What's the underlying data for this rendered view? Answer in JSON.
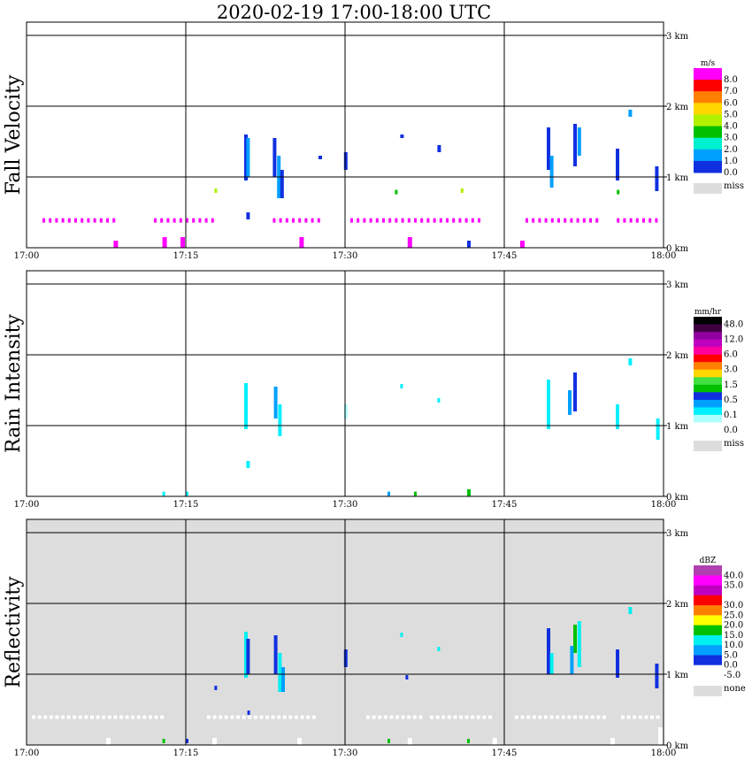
{
  "title": "2020-02-19   17:00-18:00 UTC",
  "chart_data": [
    {
      "type": "heatmap",
      "name": "Fall Velocity",
      "ylabel": "Fall Velocity",
      "units": "m/s",
      "background": "#ffffff",
      "x_ticks": [
        "17:00",
        "17:15",
        "17:30",
        "17:45",
        "18:00"
      ],
      "y_ticks": [
        "0 km",
        "1 km",
        "2 km",
        "3 km"
      ],
      "xlim_min": [
        0,
        60
      ],
      "ylim_km": [
        0,
        3
      ],
      "colorbar": [
        {
          "label": "8.0",
          "color": "#ff00ff"
        },
        {
          "label": "7.0",
          "color": "#ff0000"
        },
        {
          "label": "6.0",
          "color": "#ff7f00"
        },
        {
          "label": "5.0",
          "color": "#ffd700"
        },
        {
          "label": "4.0",
          "color": "#b0f000"
        },
        {
          "label": "3.0",
          "color": "#00c000"
        },
        {
          "label": "2.0",
          "color": "#00f0d0"
        },
        {
          "label": "1.0",
          "color": "#00a0ff"
        },
        {
          "label": "0.0",
          "color": "#1030e0"
        }
      ],
      "miss_label": "miss",
      "miss_color": "#dddddd",
      "echoes": [
        {
          "t": 20.5,
          "z0": 0.95,
          "z1": 1.6,
          "color": "#1030e0"
        },
        {
          "t": 20.7,
          "z0": 1.0,
          "z1": 1.55,
          "color": "#00a0ff"
        },
        {
          "t": 23.2,
          "z0": 1.0,
          "z1": 1.55,
          "color": "#1030e0"
        },
        {
          "t": 23.6,
          "z0": 0.7,
          "z1": 1.3,
          "color": "#00a0ff"
        },
        {
          "t": 23.9,
          "z0": 0.7,
          "z1": 1.1,
          "color": "#1030e0"
        },
        {
          "t": 27.5,
          "z0": 1.25,
          "z1": 1.3,
          "color": "#1030e0"
        },
        {
          "t": 29.9,
          "z0": 1.1,
          "z1": 1.35,
          "color": "#1030e0"
        },
        {
          "t": 35.2,
          "z0": 1.55,
          "z1": 1.6,
          "color": "#1030e0"
        },
        {
          "t": 38.7,
          "z0": 1.35,
          "z1": 1.45,
          "color": "#1030e0"
        },
        {
          "t": 49.0,
          "z0": 1.1,
          "z1": 1.7,
          "color": "#1030e0"
        },
        {
          "t": 49.3,
          "z0": 0.85,
          "z1": 1.3,
          "color": "#00a0ff"
        },
        {
          "t": 51.5,
          "z0": 1.15,
          "z1": 1.75,
          "color": "#1030e0"
        },
        {
          "t": 51.9,
          "z0": 1.3,
          "z1": 1.7,
          "color": "#00a0ff"
        },
        {
          "t": 55.5,
          "z0": 0.95,
          "z1": 1.4,
          "color": "#1030e0"
        },
        {
          "t": 56.7,
          "z0": 1.85,
          "z1": 1.95,
          "color": "#00a0ff"
        },
        {
          "t": 59.2,
          "z0": 0.8,
          "z1": 1.15,
          "color": "#1030e0"
        },
        {
          "t": 41.5,
          "z0": 0.0,
          "z1": 0.1,
          "color": "#1030e0"
        },
        {
          "t": 20.7,
          "z0": 0.4,
          "z1": 0.5,
          "color": "#1030e0"
        }
      ],
      "speckles": [
        {
          "t": 17.7,
          "z": 0.8,
          "color": "#b0f000"
        },
        {
          "t": 34.7,
          "z": 0.78,
          "color": "#00c000"
        },
        {
          "t": 40.9,
          "z": 0.8,
          "color": "#b0f000"
        },
        {
          "t": 55.6,
          "z": 0.78,
          "color": "#00c000"
        }
      ],
      "magenta_band_z": 0.38,
      "magenta_band_segments": [
        [
          1.5,
          8.5
        ],
        [
          12,
          17.5
        ],
        [
          23.2,
          27.6
        ],
        [
          30.5,
          43
        ],
        [
          47,
          54
        ],
        [
          55.6,
          59.6
        ]
      ],
      "surface_marks": [
        [
          8.2,
          0.05
        ],
        [
          12.8,
          0.1
        ],
        [
          14.5,
          0.1
        ],
        [
          25.7,
          0.1
        ],
        [
          35.9,
          0.1
        ],
        [
          46.5,
          0.05
        ]
      ]
    },
    {
      "type": "heatmap",
      "name": "Rain Intensity",
      "ylabel": "Rain Intensity",
      "units": "mm/hr",
      "background": "#ffffff",
      "x_ticks": [
        "17:00",
        "17:15",
        "17:30",
        "17:45",
        "18:00"
      ],
      "y_ticks": [
        "0 km",
        "1 km",
        "2 km",
        "3 km"
      ],
      "xlim_min": [
        0,
        60
      ],
      "ylim_km": [
        0,
        3
      ],
      "colorbar": [
        {
          "label": "48.0",
          "color": "#000000"
        },
        {
          "label": "",
          "color": "#400040"
        },
        {
          "label": "12.0",
          "color": "#9000a0"
        },
        {
          "label": "",
          "color": "#c000c0"
        },
        {
          "label": "6.0",
          "color": "#ff00a0"
        },
        {
          "label": "",
          "color": "#ff0000"
        },
        {
          "label": "3.0",
          "color": "#ff7f00"
        },
        {
          "label": "",
          "color": "#ffd700"
        },
        {
          "label": "1.5",
          "color": "#40e040"
        },
        {
          "label": "",
          "color": "#00c000"
        },
        {
          "label": "0.5",
          "color": "#1030e0"
        },
        {
          "label": "",
          "color": "#00a0ff"
        },
        {
          "label": "0.1",
          "color": "#00f0ff"
        },
        {
          "label": "",
          "color": "#b0ffff"
        },
        {
          "label": "0.0",
          "color": "#ffffff"
        }
      ],
      "miss_label": "miss",
      "miss_color": "#dddddd",
      "echoes": [
        {
          "t": 20.5,
          "z0": 0.95,
          "z1": 1.6,
          "color": "#00f0ff"
        },
        {
          "t": 20.7,
          "z0": 0.4,
          "z1": 0.5,
          "color": "#00f0ff"
        },
        {
          "t": 23.3,
          "z0": 1.1,
          "z1": 1.55,
          "color": "#00a0ff"
        },
        {
          "t": 23.7,
          "z0": 0.85,
          "z1": 1.3,
          "color": "#00f0ff"
        },
        {
          "t": 29.9,
          "z0": 1.1,
          "z1": 1.3,
          "color": "#b0ffff"
        },
        {
          "t": 49.0,
          "z0": 0.95,
          "z1": 1.65,
          "color": "#00f0ff"
        },
        {
          "t": 51.5,
          "z0": 1.2,
          "z1": 1.75,
          "color": "#1030e0"
        },
        {
          "t": 51.0,
          "z0": 1.15,
          "z1": 1.5,
          "color": "#00a0ff"
        },
        {
          "t": 55.5,
          "z0": 0.95,
          "z1": 1.3,
          "color": "#00f0ff"
        },
        {
          "t": 56.7,
          "z0": 1.85,
          "z1": 1.95,
          "color": "#00f0ff"
        },
        {
          "t": 59.3,
          "z0": 0.8,
          "z1": 1.1,
          "color": "#00f0ff"
        },
        {
          "t": 41.5,
          "z0": 0.0,
          "z1": 0.1,
          "color": "#00c000"
        }
      ],
      "speckles": [
        {
          "t": 35.2,
          "z": 1.55,
          "color": "#00f0ff"
        },
        {
          "t": 38.7,
          "z": 1.35,
          "color": "#00f0ff"
        },
        {
          "t": 34.0,
          "z": 0.03,
          "color": "#00a0ff"
        },
        {
          "t": 36.5,
          "z": 0.03,
          "color": "#00c000"
        },
        {
          "t": 15.0,
          "z": 0.03,
          "color": "#00f0ff"
        },
        {
          "t": 12.8,
          "z": 0.03,
          "color": "#00f0ff"
        }
      ]
    },
    {
      "type": "heatmap",
      "name": "Reflectivity",
      "ylabel": "Reflectivity",
      "units": "dBZ",
      "background": "#dddddd",
      "x_ticks": [
        "17:00",
        "17:15",
        "17:30",
        "17:45",
        "18:00"
      ],
      "y_ticks": [
        "0 km",
        "1 km",
        "2 km",
        "3 km"
      ],
      "xlim_min": [
        0,
        60
      ],
      "ylim_km": [
        0,
        3
      ],
      "colorbar": [
        {
          "label": "40.0",
          "color": "#b040b0"
        },
        {
          "label": "35.0",
          "color": "#ff00ff"
        },
        {
          "label": "",
          "color": "#c000c0"
        },
        {
          "label": "30.0",
          "color": "#ff0000"
        },
        {
          "label": "25.0",
          "color": "#ff7f00"
        },
        {
          "label": "20.0",
          "color": "#ffff00"
        },
        {
          "label": "15.0",
          "color": "#00c000"
        },
        {
          "label": "10.0",
          "color": "#00f0f0"
        },
        {
          "label": "5.0",
          "color": "#00a0ff"
        },
        {
          "label": "0.0",
          "color": "#1030e0"
        },
        {
          "label": "-5.0",
          "color": "#ffffff"
        }
      ],
      "miss_label": "none",
      "miss_color": "#dddddd",
      "echoes": [
        {
          "t": 20.5,
          "z0": 0.95,
          "z1": 1.6,
          "color": "#00f0f0"
        },
        {
          "t": 20.7,
          "z0": 1.0,
          "z1": 1.5,
          "color": "#1030e0"
        },
        {
          "t": 23.3,
          "z0": 1.0,
          "z1": 1.55,
          "color": "#1030e0"
        },
        {
          "t": 23.7,
          "z0": 0.75,
          "z1": 1.3,
          "color": "#00f0f0"
        },
        {
          "t": 24.0,
          "z0": 0.75,
          "z1": 1.1,
          "color": "#00a0ff"
        },
        {
          "t": 29.9,
          "z0": 1.1,
          "z1": 1.35,
          "color": "#1030e0"
        },
        {
          "t": 49.0,
          "z0": 1.0,
          "z1": 1.65,
          "color": "#1030e0"
        },
        {
          "t": 49.3,
          "z0": 1.0,
          "z1": 1.3,
          "color": "#00f0f0"
        },
        {
          "t": 51.5,
          "z0": 1.3,
          "z1": 1.7,
          "color": "#00c000"
        },
        {
          "t": 51.9,
          "z0": 1.1,
          "z1": 1.75,
          "color": "#00f0f0"
        },
        {
          "t": 51.2,
          "z0": 1.0,
          "z1": 1.4,
          "color": "#00a0ff"
        },
        {
          "t": 55.5,
          "z0": 0.95,
          "z1": 1.35,
          "color": "#1030e0"
        },
        {
          "t": 59.2,
          "z0": 0.8,
          "z1": 1.15,
          "color": "#1030e0"
        },
        {
          "t": 56.7,
          "z0": 1.85,
          "z1": 1.95,
          "color": "#00f0f0"
        }
      ],
      "speckles": [
        {
          "t": 35.2,
          "z": 1.55,
          "color": "#00f0f0"
        },
        {
          "t": 38.7,
          "z": 1.35,
          "color": "#00f0f0"
        },
        {
          "t": 17.7,
          "z": 0.8,
          "color": "#1030e0"
        },
        {
          "t": 35.7,
          "z": 0.95,
          "color": "#1030e0"
        },
        {
          "t": 20.8,
          "z": 0.45,
          "color": "#1030e0"
        },
        {
          "t": 41.5,
          "z": 0.05,
          "color": "#00c000"
        },
        {
          "t": 34.0,
          "z": 0.05,
          "color": "#00c000"
        },
        {
          "t": 12.8,
          "z": 0.05,
          "color": "#00c000"
        },
        {
          "t": 15.0,
          "z": 0.05,
          "color": "#1030e0"
        }
      ],
      "white_band_z": 0.38,
      "white_band_segments": [
        [
          0.5,
          13
        ],
        [
          17,
          27
        ],
        [
          32,
          37
        ],
        [
          38,
          44
        ],
        [
          46,
          54.5
        ],
        [
          56,
          59.8
        ]
      ],
      "surface_marks": [
        [
          7.5,
          0.05
        ],
        [
          17.5,
          0.05
        ],
        [
          25.5,
          0.05
        ],
        [
          35.9,
          0.05
        ],
        [
          43.9,
          0.05
        ],
        [
          55,
          0.05
        ],
        [
          59.5,
          0.2
        ]
      ]
    }
  ]
}
